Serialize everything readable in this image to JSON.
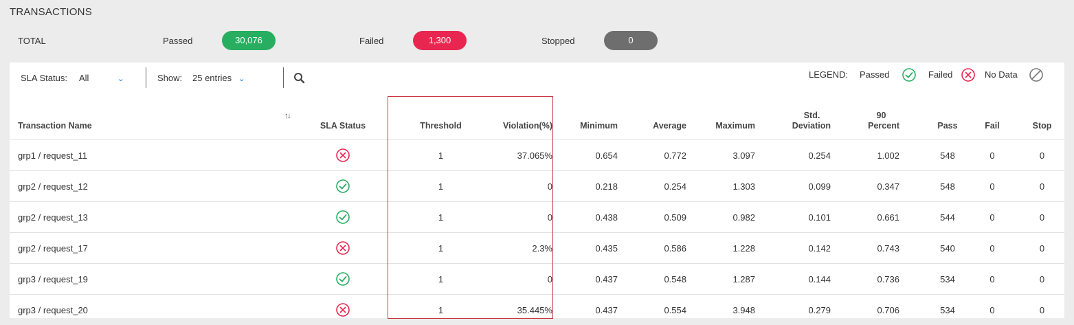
{
  "header": {
    "title": "TRANSACTIONS"
  },
  "summary": {
    "total_label": "TOTAL",
    "passed_label": "Passed",
    "passed_value": "30,076",
    "failed_label": "Failed",
    "failed_value": "1,300",
    "stopped_label": "Stopped",
    "stopped_value": "0",
    "colors": {
      "passed": "#27ae60",
      "failed": "#e8264f",
      "stopped": "#6e6e6e"
    }
  },
  "toolbar": {
    "sla_label": "SLA Status:",
    "sla_value": "All",
    "show_label": "Show:",
    "show_value": "25 entries",
    "search_icon": "search-icon"
  },
  "legend": {
    "label": "LEGEND:",
    "passed": "Passed",
    "failed": "Failed",
    "nodata": "No Data"
  },
  "table": {
    "headers": {
      "name": "Transaction Name",
      "sla": "SLA Status",
      "threshold": "Threshold",
      "violation": "Violation(%)",
      "minimum": "Minimum",
      "average": "Average",
      "maximum": "Maximum",
      "std_line1": "Std.",
      "std_line2": "Deviation",
      "p90_line1": "90",
      "p90_line2": "Percent",
      "pass": "Pass",
      "fail": "Fail",
      "stop": "Stop"
    },
    "rows": [
      {
        "name": "grp1 / request_11",
        "status": "failed",
        "threshold": "1",
        "violation": "37.065%",
        "minimum": "0.654",
        "average": "0.772",
        "maximum": "3.097",
        "std": "0.254",
        "p90": "1.002",
        "pass": "548",
        "fail": "0",
        "stop": "0"
      },
      {
        "name": "grp2 / request_12",
        "status": "passed",
        "threshold": "1",
        "violation": "0",
        "minimum": "0.218",
        "average": "0.254",
        "maximum": "1.303",
        "std": "0.099",
        "p90": "0.347",
        "pass": "548",
        "fail": "0",
        "stop": "0"
      },
      {
        "name": "grp2 / request_13",
        "status": "passed",
        "threshold": "1",
        "violation": "0",
        "minimum": "0.438",
        "average": "0.509",
        "maximum": "0.982",
        "std": "0.101",
        "p90": "0.661",
        "pass": "544",
        "fail": "0",
        "stop": "0"
      },
      {
        "name": "grp2 / request_17",
        "status": "failed",
        "threshold": "1",
        "violation": "2.3%",
        "minimum": "0.435",
        "average": "0.586",
        "maximum": "1.228",
        "std": "0.142",
        "p90": "0.743",
        "pass": "540",
        "fail": "0",
        "stop": "0"
      },
      {
        "name": "grp3 / request_19",
        "status": "passed",
        "threshold": "1",
        "violation": "0",
        "minimum": "0.437",
        "average": "0.548",
        "maximum": "1.287",
        "std": "0.144",
        "p90": "0.736",
        "pass": "534",
        "fail": "0",
        "stop": "0"
      },
      {
        "name": "grp3 / request_20",
        "status": "failed",
        "threshold": "1",
        "violation": "35.445%",
        "minimum": "0.437",
        "average": "0.554",
        "maximum": "3.948",
        "std": "0.279",
        "p90": "0.706",
        "pass": "534",
        "fail": "0",
        "stop": "0"
      }
    ]
  }
}
